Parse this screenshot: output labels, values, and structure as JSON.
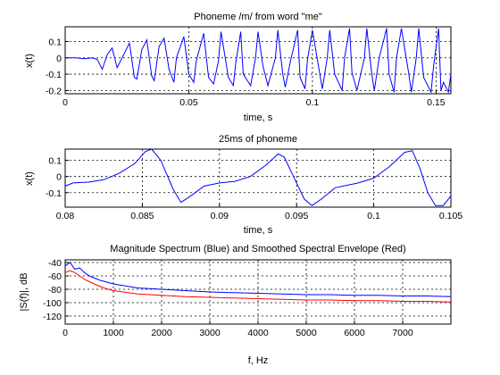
{
  "chart_data": [
    {
      "type": "line",
      "title": "Phoneme /m/ from word \"me\"",
      "xlabel": "time, s",
      "ylabel": "x(t)",
      "xlim": [
        0,
        0.156
      ],
      "ylim": [
        -0.22,
        0.19
      ],
      "xticks": [
        0,
        0.05,
        0.1,
        0.15
      ],
      "xtick_labels": [
        "0",
        "0.05",
        "0.1",
        "0.15"
      ],
      "yticks": [
        -0.2,
        -0.1,
        0,
        0.1
      ],
      "ytick_labels": [
        "-0.2",
        "-0.1",
        "0",
        "0.1"
      ],
      "grid": true,
      "color": "#0000ff",
      "series": [
        {
          "x": [
            0,
            0.004,
            0.008,
            0.011,
            0.013,
            0.015,
            0.017,
            0.019,
            0.021,
            0.024,
            0.026,
            0.028,
            0.029,
            0.031,
            0.033,
            0.035,
            0.036,
            0.038,
            0.04,
            0.042,
            0.044,
            0.045,
            0.048,
            0.05,
            0.052,
            0.053,
            0.056,
            0.058,
            0.06,
            0.062,
            0.063,
            0.066,
            0.068,
            0.069,
            0.071,
            0.072,
            0.075,
            0.077,
            0.078,
            0.08,
            0.082,
            0.085,
            0.086,
            0.088,
            0.089,
            0.091,
            0.094,
            0.095,
            0.097,
            0.098,
            0.1,
            0.103,
            0.104,
            0.106,
            0.107,
            0.109,
            0.112,
            0.113,
            0.115,
            0.116,
            0.118,
            0.121,
            0.122,
            0.124,
            0.125,
            0.127,
            0.13,
            0.131,
            0.133,
            0.134,
            0.136,
            0.139,
            0.14,
            0.142,
            0.143,
            0.145,
            0.148,
            0.149,
            0.151,
            0.152,
            0.153,
            0.155,
            0.156
          ],
          "y": [
            0,
            0.0,
            -0.005,
            0.0,
            -0.01,
            -0.07,
            0.02,
            0.06,
            -0.06,
            0.03,
            0.09,
            -0.12,
            -0.13,
            0.05,
            0.11,
            -0.11,
            -0.14,
            0.07,
            0.12,
            -0.07,
            -0.15,
            0.0,
            0.13,
            -0.1,
            -0.15,
            -0.02,
            0.15,
            -0.12,
            -0.16,
            -0.02,
            0.16,
            -0.12,
            -0.17,
            -0.03,
            0.16,
            -0.1,
            -0.17,
            0.0,
            0.16,
            -0.05,
            -0.17,
            0.0,
            0.17,
            -0.1,
            -0.18,
            -0.03,
            0.17,
            -0.12,
            -0.19,
            -0.01,
            0.17,
            -0.1,
            -0.19,
            0.0,
            0.17,
            -0.1,
            -0.2,
            0.0,
            0.18,
            -0.09,
            -0.2,
            0.0,
            0.18,
            -0.1,
            -0.2,
            0.0,
            0.18,
            -0.1,
            -0.21,
            0.0,
            0.18,
            -0.1,
            -0.21,
            0.0,
            0.18,
            -0.12,
            -0.21,
            -0.05,
            0.18,
            -0.2,
            -0.15,
            -0.21,
            -0.1
          ]
        }
      ]
    },
    {
      "type": "line",
      "title": "25ms of phoneme",
      "xlabel": "time, s",
      "ylabel": "x(t)",
      "xlim": [
        0.08,
        0.105
      ],
      "ylim": [
        -0.19,
        0.17
      ],
      "xticks": [
        0.08,
        0.085,
        0.09,
        0.095,
        0.1,
        0.105
      ],
      "xtick_labels": [
        "0.08",
        "0.085",
        "0.09",
        "0.095",
        "0.1",
        "0.105"
      ],
      "yticks": [
        -0.1,
        0,
        0.1
      ],
      "ytick_labels": [
        "-0.1",
        "0",
        "0.1"
      ],
      "grid": true,
      "color": "#0000ff",
      "series": [
        {
          "x": [
            0.08,
            0.0805,
            0.0815,
            0.0825,
            0.0835,
            0.0845,
            0.0852,
            0.0856,
            0.0862,
            0.087,
            0.0875,
            0.088,
            0.089,
            0.09,
            0.091,
            0.092,
            0.093,
            0.0938,
            0.0942,
            0.0948,
            0.0955,
            0.096,
            0.0966,
            0.0975,
            0.099,
            0.1,
            0.101,
            0.102,
            0.1025,
            0.103,
            0.1035,
            0.104,
            0.1045,
            0.105
          ],
          "y": [
            -0.06,
            -0.04,
            -0.035,
            -0.02,
            0.02,
            0.08,
            0.155,
            0.17,
            0.1,
            -0.08,
            -0.16,
            -0.13,
            -0.06,
            -0.04,
            -0.03,
            0.0,
            0.07,
            0.14,
            0.12,
            0.0,
            -0.14,
            -0.18,
            -0.14,
            -0.07,
            -0.04,
            -0.01,
            0.06,
            0.15,
            0.16,
            0.05,
            -0.1,
            -0.18,
            -0.18,
            -0.12
          ]
        }
      ]
    },
    {
      "type": "line",
      "title": "Magnitude Spectrum (Blue) and Smoothed Spectral Envelope (Red)",
      "xlabel": "f, Hz",
      "ylabel": "|S(f)|, dB",
      "xlim": [
        0,
        8000
      ],
      "ylim": [
        -132,
        -36
      ],
      "xticks": [
        0,
        1000,
        2000,
        3000,
        4000,
        5000,
        6000,
        7000
      ],
      "xtick_labels": [
        "0",
        "1000",
        "2000",
        "3000",
        "4000",
        "5000",
        "6000",
        "7000"
      ],
      "yticks": [
        -40,
        -60,
        -80,
        -100,
        -120
      ],
      "ytick_labels": [
        "-40",
        "-60",
        "-80",
        "-100",
        "-120"
      ],
      "grid": true,
      "series": [
        {
          "name": "Magnitude Spectrum",
          "color": "#0000ff",
          "x": [
            0,
            100,
            200,
            300,
            400,
            500,
            700,
            1000,
            1500,
            2000,
            2500,
            3000,
            3500,
            4000,
            4500,
            5000,
            5500,
            6000,
            6500,
            7000,
            7500,
            8000
          ],
          "y": [
            -45,
            -40,
            -50,
            -48,
            -55,
            -60,
            -66,
            -72,
            -78,
            -80,
            -82,
            -84,
            -85,
            -86,
            -87,
            -88,
            -88,
            -89,
            -89,
            -90,
            -90,
            -91
          ]
        },
        {
          "name": "Smoothed Spectral Envelope",
          "color": "#ff0000",
          "x": [
            0,
            100,
            200,
            300,
            400,
            600,
            800,
            1000,
            1500,
            2000,
            2500,
            3000,
            3500,
            4000,
            4500,
            5000,
            5500,
            6000,
            6500,
            7000,
            7500,
            8000
          ],
          "y": [
            -55,
            -52,
            -55,
            -60,
            -65,
            -72,
            -78,
            -82,
            -87,
            -89,
            -91,
            -92,
            -93,
            -94,
            -95,
            -96,
            -96,
            -97,
            -97,
            -98,
            -98,
            -99
          ]
        }
      ]
    }
  ]
}
